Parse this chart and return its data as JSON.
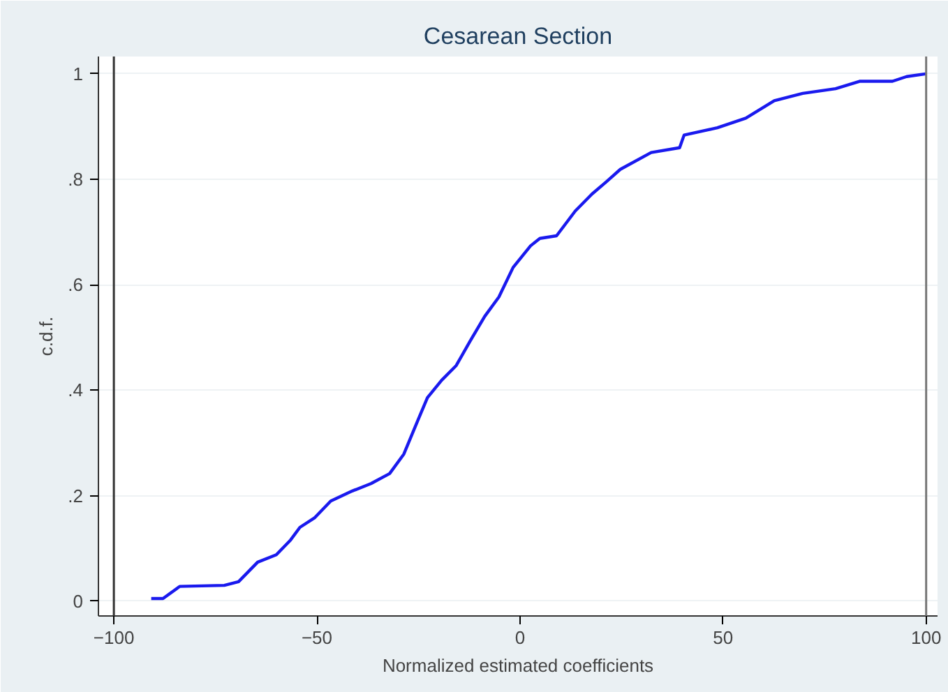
{
  "chart_data": {
    "type": "line",
    "title": "Cesarean Section",
    "xlabel": "Normalized estimated coefficients",
    "ylabel": "c.d.f.",
    "xlim": [
      -103.8,
      102.8
    ],
    "ylim": [
      -0.028,
      1.033
    ],
    "xticks": [
      -100,
      -50,
      0,
      50,
      100
    ],
    "yticks": [
      {
        "value": 0,
        "label": "0"
      },
      {
        "value": 0.2,
        "label": ".2"
      },
      {
        "value": 0.4,
        "label": ".4"
      },
      {
        "value": 0.6,
        "label": ".6"
      },
      {
        "value": 0.8,
        "label": ".8"
      },
      {
        "value": 1,
        "label": "1"
      }
    ],
    "grid": "y",
    "marker": "none",
    "line_style": "solid",
    "ref_lines": [
      {
        "axis": "x",
        "value": -100,
        "label": null,
        "color": "#333333"
      },
      {
        "axis": "x",
        "value": 100,
        "label": null,
        "color": "#777777"
      }
    ],
    "series": [
      {
        "color": "#1a1aee",
        "x": [
          -90.8,
          -87.9,
          -83.8,
          -72.8,
          -69.3,
          -64.6,
          -60,
          -56.5,
          -54.2,
          -50.6,
          -46.6,
          -41.3,
          -36.7,
          -32.1,
          -28.6,
          -25.1,
          -22.8,
          -19.3,
          -15.7,
          -12.3,
          -8.7,
          -5.2,
          -1.7,
          2.6,
          4.9,
          9.0,
          13.6,
          17.7,
          21.2,
          24.7,
          32.3,
          39.3,
          40.4,
          48.6,
          55.6,
          62.6,
          69.6,
          77.7,
          83.6,
          91.7,
          95.2,
          99.9
        ],
        "values": [
          0.005,
          0.005,
          0.028,
          0.03,
          0.037,
          0.074,
          0.088,
          0.116,
          0.14,
          0.158,
          0.19,
          0.209,
          0.223,
          0.242,
          0.279,
          0.344,
          0.386,
          0.419,
          0.447,
          0.493,
          0.54,
          0.577,
          0.633,
          0.674,
          0.688,
          0.693,
          0.74,
          0.772,
          0.795,
          0.819,
          0.851,
          0.86,
          0.884,
          0.898,
          0.916,
          0.949,
          0.963,
          0.972,
          0.986,
          0.986,
          0.995,
          1.0
        ]
      }
    ]
  }
}
